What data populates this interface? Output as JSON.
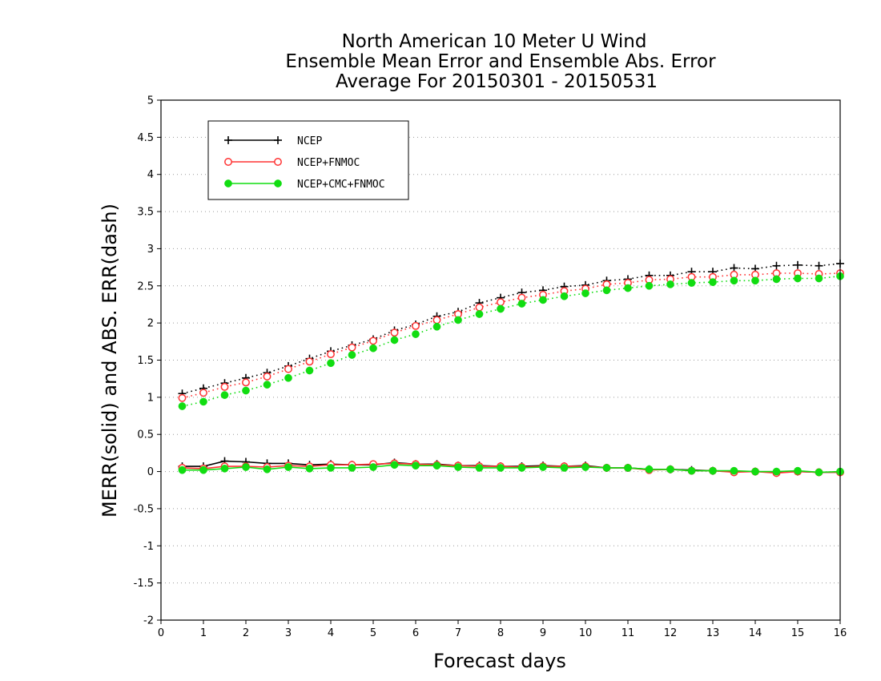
{
  "chart_data": {
    "type": "line",
    "title": [
      "North American 10 Meter U Wind",
      "Ensemble Mean Error and Ensemble Abs. Error",
      "Average For 20150301 - 20150531"
    ],
    "xlabel": "Forecast days",
    "ylabel": "MERR(solid) and ABS. ERR(dash)",
    "xlim": [
      0,
      16
    ],
    "ylim": [
      -2,
      5
    ],
    "xticks": [
      0,
      1,
      2,
      3,
      4,
      5,
      6,
      7,
      8,
      9,
      10,
      11,
      12,
      13,
      14,
      15,
      16
    ],
    "yticks": [
      -2,
      -1.5,
      -1,
      -0.5,
      0,
      0.5,
      1,
      1.5,
      2,
      2.5,
      3,
      3.5,
      4,
      4.5,
      5
    ],
    "grid": "horizontal dotted",
    "legend_position": "top-left",
    "x": [
      0.5,
      1,
      1.5,
      2,
      2.5,
      3,
      3.5,
      4,
      4.5,
      5,
      5.5,
      6,
      6.5,
      7,
      7.5,
      8,
      8.5,
      9,
      9.5,
      10,
      10.5,
      11,
      11.5,
      12,
      12.5,
      13,
      13.5,
      14,
      14.5,
      15,
      15.5,
      16
    ],
    "series": [
      {
        "name": "NCEP",
        "color": "#000000",
        "marker": "plus",
        "merr": [
          0.07,
          0.07,
          0.14,
          0.13,
          0.11,
          0.11,
          0.09,
          0.1,
          0.09,
          0.09,
          0.12,
          0.1,
          0.1,
          0.08,
          0.08,
          0.07,
          0.07,
          0.08,
          0.07,
          0.08,
          0.05,
          0.05,
          0.03,
          0.03,
          0.02,
          0.01,
          0.0,
          0.0,
          -0.01,
          0.0,
          -0.01,
          -0.01
        ],
        "abs_err": [
          1.05,
          1.12,
          1.19,
          1.26,
          1.33,
          1.42,
          1.52,
          1.62,
          1.7,
          1.78,
          1.9,
          1.98,
          2.09,
          2.15,
          2.27,
          2.34,
          2.41,
          2.44,
          2.49,
          2.51,
          2.57,
          2.59,
          2.64,
          2.64,
          2.69,
          2.69,
          2.74,
          2.73,
          2.77,
          2.78,
          2.77,
          2.8
        ]
      },
      {
        "name": "NCEP+FNMOC",
        "color": "#ff3333",
        "marker": "open-circle",
        "merr": [
          0.05,
          0.04,
          0.07,
          0.07,
          0.06,
          0.08,
          0.07,
          0.09,
          0.09,
          0.1,
          0.11,
          0.1,
          0.09,
          0.08,
          0.07,
          0.07,
          0.06,
          0.07,
          0.07,
          0.07,
          0.05,
          0.05,
          0.02,
          0.03,
          0.01,
          0.01,
          -0.01,
          0.0,
          -0.02,
          0.0,
          -0.01,
          -0.01
        ],
        "abs_err": [
          0.99,
          1.06,
          1.14,
          1.2,
          1.28,
          1.38,
          1.48,
          1.58,
          1.67,
          1.76,
          1.87,
          1.96,
          2.04,
          2.12,
          2.21,
          2.28,
          2.34,
          2.38,
          2.43,
          2.46,
          2.52,
          2.54,
          2.58,
          2.59,
          2.62,
          2.62,
          2.65,
          2.65,
          2.67,
          2.67,
          2.66,
          2.67
        ]
      },
      {
        "name": "NCEP+CMC+FNMOC",
        "color": "#11dd11",
        "marker": "filled-circle",
        "merr": [
          0.02,
          0.02,
          0.04,
          0.06,
          0.03,
          0.06,
          0.04,
          0.05,
          0.05,
          0.06,
          0.09,
          0.08,
          0.08,
          0.06,
          0.05,
          0.05,
          0.05,
          0.06,
          0.05,
          0.06,
          0.05,
          0.05,
          0.03,
          0.03,
          0.01,
          0.01,
          0.01,
          0.0,
          0.0,
          0.01,
          -0.01,
          0.0
        ],
        "abs_err": [
          0.88,
          0.94,
          1.03,
          1.09,
          1.17,
          1.26,
          1.36,
          1.46,
          1.57,
          1.66,
          1.77,
          1.85,
          1.95,
          2.04,
          2.12,
          2.19,
          2.26,
          2.31,
          2.36,
          2.4,
          2.44,
          2.47,
          2.5,
          2.52,
          2.54,
          2.55,
          2.57,
          2.57,
          2.59,
          2.6,
          2.6,
          2.63
        ]
      }
    ]
  }
}
